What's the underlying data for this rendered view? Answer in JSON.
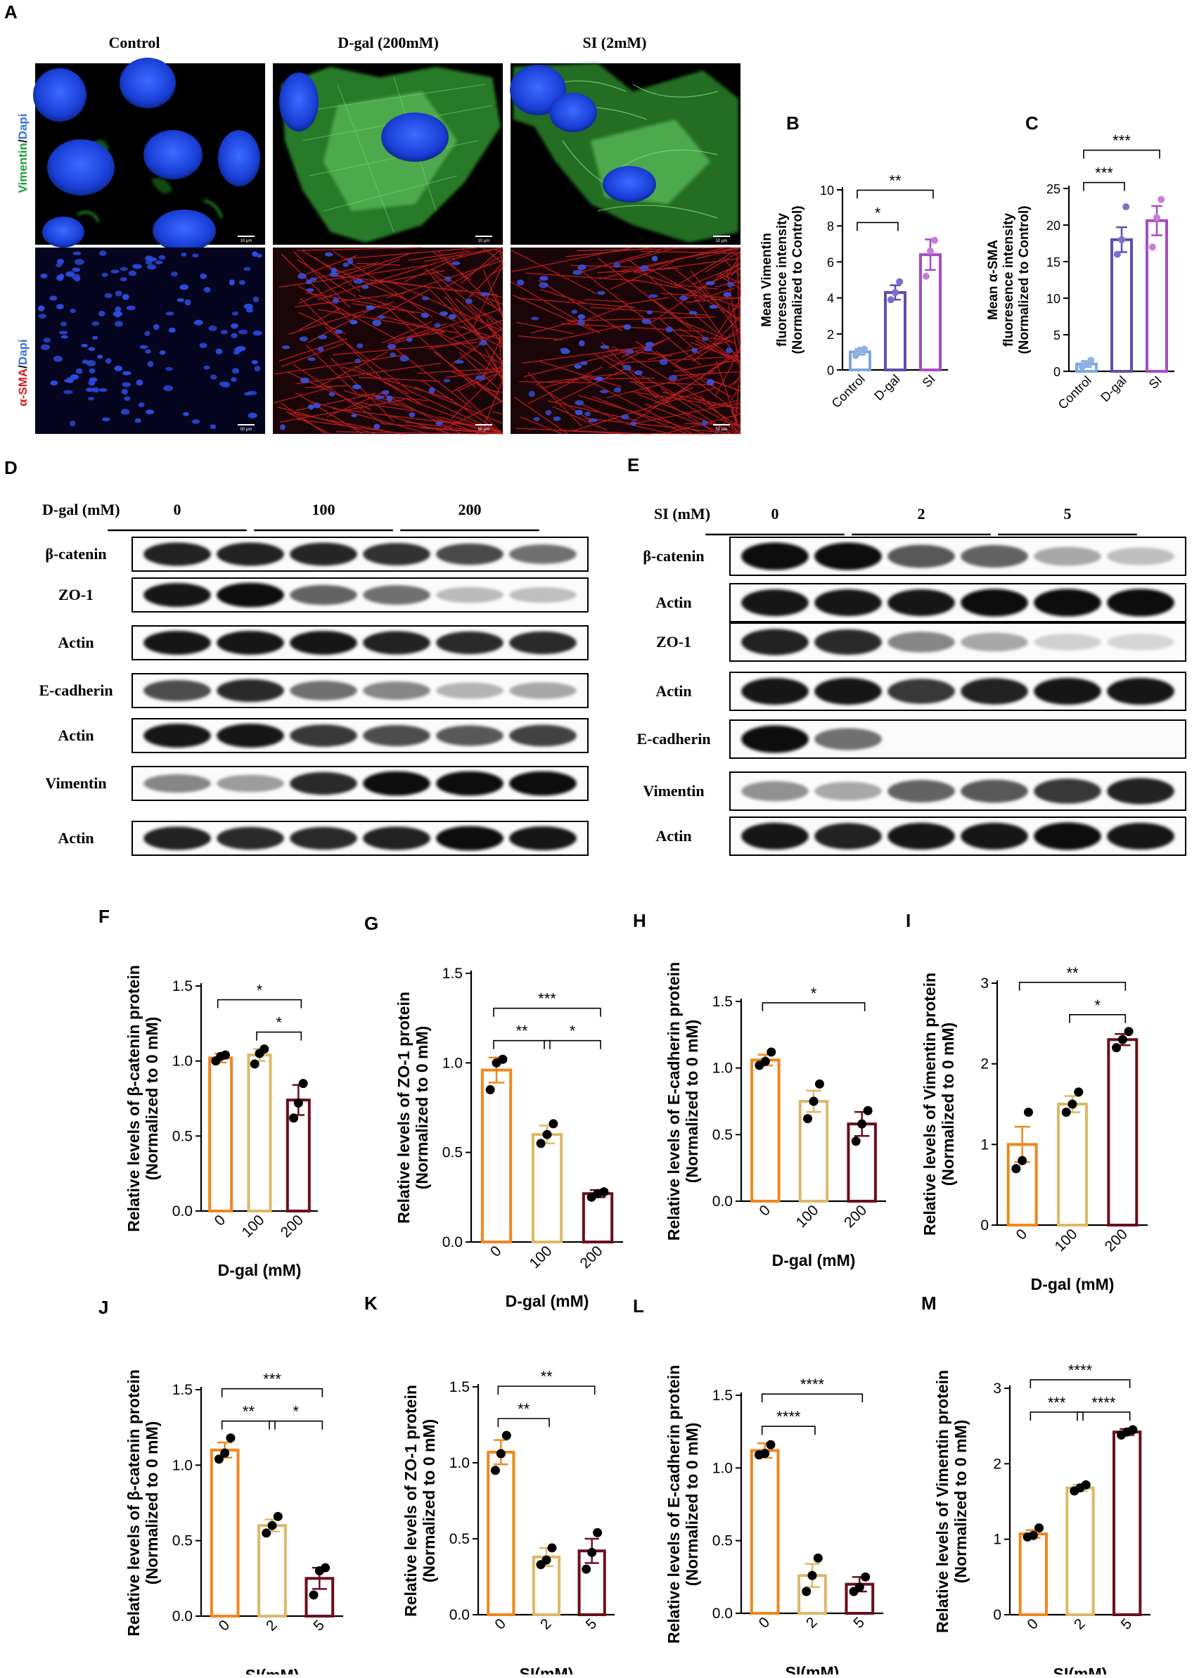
{
  "panel_letters": {
    "A": "A",
    "B": "B",
    "C": "C",
    "D": "D",
    "E": "E",
    "F": "F",
    "G": "G",
    "H": "H",
    "I": "I",
    "J": "J",
    "K": "K",
    "L": "L",
    "M": "M"
  },
  "micrographs": {
    "column_titles": [
      "Control",
      "D-gal (200mM)",
      "SI (2mM)"
    ],
    "row1_label": {
      "stain": "Vimentin",
      "sep": "/",
      "counter": "Dapi"
    },
    "row2_label": {
      "stain": "α-SMA",
      "sep": "/",
      "counter": "Dapi"
    },
    "scale_bars_row1": [
      "10 μm",
      "10 μm",
      "10 μm"
    ],
    "scale_bars_row2": [
      "50 μm",
      "50 μm",
      "50 μm"
    ]
  },
  "blot_D": {
    "treatment_label": "D-gal (mM)",
    "groups": [
      "0",
      "100",
      "200"
    ],
    "rows": [
      {
        "label": "β-catenin",
        "intensity": [
          0.9,
          0.9,
          0.88,
          0.82,
          0.72,
          0.55
        ]
      },
      {
        "label": "ZO-1",
        "intensity": [
          0.95,
          1.0,
          0.6,
          0.55,
          0.22,
          0.2
        ]
      },
      {
        "label": "Actin",
        "intensity": [
          0.95,
          0.95,
          0.95,
          0.9,
          0.85,
          0.85
        ]
      },
      {
        "label": "E-cadherin",
        "intensity": [
          0.7,
          0.85,
          0.55,
          0.45,
          0.25,
          0.3
        ]
      },
      {
        "label": "Actin",
        "intensity": [
          0.95,
          0.95,
          0.8,
          0.7,
          0.65,
          0.75
        ]
      },
      {
        "label": "Vimentin",
        "intensity": [
          0.45,
          0.35,
          0.85,
          1.0,
          1.0,
          1.0
        ]
      },
      {
        "label": "Actin",
        "intensity": [
          0.9,
          0.85,
          0.85,
          0.9,
          1.0,
          0.95
        ]
      }
    ]
  },
  "blot_E": {
    "treatment_label": "SI (mM)",
    "groups": [
      "0",
      "2",
      "5"
    ],
    "rows": [
      {
        "label": "β-catenin",
        "intensity": [
          1.0,
          1.0,
          0.65,
          0.6,
          0.3,
          0.2
        ]
      },
      {
        "label": "Actin",
        "intensity": [
          0.95,
          0.95,
          0.95,
          1.0,
          1.0,
          1.0
        ]
      },
      {
        "label": "ZO-1",
        "intensity": [
          0.9,
          0.85,
          0.45,
          0.3,
          0.12,
          0.1
        ]
      },
      {
        "label": "Actin",
        "intensity": [
          0.95,
          0.95,
          0.8,
          0.9,
          0.95,
          0.95
        ]
      },
      {
        "label": "E-cadherin",
        "intensity": [
          1.0,
          0.55,
          0.0,
          0.0,
          0.0,
          0.0
        ]
      },
      {
        "label": "Vimentin",
        "intensity": [
          0.4,
          0.3,
          0.6,
          0.65,
          0.8,
          0.9
        ]
      },
      {
        "label": "Actin",
        "intensity": [
          0.95,
          0.9,
          0.95,
          0.95,
          1.0,
          0.95
        ]
      }
    ]
  },
  "colors": {
    "orange": "#f0861e",
    "tan": "#ddb866",
    "maroon": "#6b0f1a",
    "light_blue": "#7fa7de",
    "indigo": "#5a4fad",
    "violet": "#a64cc0",
    "dot_blue": "#8fb0e3",
    "dot_indigo": "#7b6fc7",
    "dot_violet": "#c77fd8"
  },
  "chart_data": [
    {
      "id": "B",
      "type": "bar",
      "categories": [
        "Control",
        "D-gal",
        "SI"
      ],
      "values": [
        1.0,
        4.3,
        6.4
      ],
      "errors": [
        0.15,
        0.4,
        0.85
      ],
      "points": [
        [
          0.8,
          1.1,
          1.15
        ],
        [
          3.9,
          4.3,
          4.9
        ],
        [
          5.2,
          6.6,
          7.2
        ]
      ],
      "ylabel_lines": [
        "Mean Vimentin",
        "fluoresence intensity",
        "(Normalized to Control)"
      ],
      "xlabel": "",
      "ylim": [
        0,
        10
      ],
      "yticks": [
        0,
        2,
        4,
        6,
        8,
        10
      ],
      "color_set": "blue",
      "brackets": [
        {
          "from": 0,
          "to": 1,
          "label": "*"
        },
        {
          "from": 0,
          "to": 2,
          "label": "**"
        }
      ]
    },
    {
      "id": "C",
      "type": "bar",
      "categories": [
        "Control",
        "D-gal",
        "SI"
      ],
      "values": [
        1.0,
        18.0,
        20.6
      ],
      "errors": [
        0.4,
        1.7,
        2.0
      ],
      "points": [
        [
          0.6,
          1.0,
          1.5
        ],
        [
          16.0,
          18.0,
          22.5
        ],
        [
          17.0,
          21.0,
          23.5
        ]
      ],
      "ylabel_lines": [
        "Mean α-SMA",
        "fluoresence intensity",
        "(Normalized to Control)"
      ],
      "xlabel": "",
      "ylim": [
        0,
        25
      ],
      "yticks": [
        0,
        5,
        10,
        15,
        20,
        25
      ],
      "color_set": "blue",
      "brackets": [
        {
          "from": 0,
          "to": 1,
          "label": "***"
        },
        {
          "from": 0,
          "to": 2,
          "label": "***"
        }
      ]
    },
    {
      "id": "F",
      "type": "bar",
      "categories": [
        "0",
        "100",
        "200"
      ],
      "values": [
        1.02,
        1.04,
        0.74
      ],
      "errors": [
        0.03,
        0.04,
        0.1
      ],
      "points": [
        [
          1.0,
          1.03,
          1.04
        ],
        [
          0.98,
          1.05,
          1.08
        ],
        [
          0.62,
          0.72,
          0.85
        ]
      ],
      "ylabel_lines": [
        "Relative levels of β-catenin protein",
        "(Normalized to 0 mM)"
      ],
      "xlabel": "D-gal (mM)",
      "ylim": [
        0,
        1.5
      ],
      "yticks": [
        0,
        0.5,
        1.0,
        1.5
      ],
      "color_set": "warm",
      "brackets": [
        {
          "from": 0,
          "to": 2,
          "label": "*"
        },
        {
          "from": 1,
          "to": 2,
          "label": "*"
        }
      ]
    },
    {
      "id": "G",
      "type": "bar",
      "categories": [
        "0",
        "100",
        "200"
      ],
      "values": [
        0.96,
        0.6,
        0.27
      ],
      "errors": [
        0.07,
        0.05,
        0.02
      ],
      "points": [
        [
          0.85,
          1.0,
          1.02
        ],
        [
          0.55,
          0.6,
          0.66
        ],
        [
          0.25,
          0.27,
          0.28
        ]
      ],
      "ylabel_lines": [
        "Relative levels of ZO-1 protein",
        "(Normalized to 0 mM)"
      ],
      "xlabel": "D-gal (mM)",
      "ylim": [
        0,
        1.5
      ],
      "yticks": [
        0,
        0.5,
        1.0,
        1.5
      ],
      "color_set": "warm",
      "brackets": [
        {
          "from": 0,
          "to": 2,
          "label": "***"
        },
        {
          "from": 0,
          "to": 1,
          "label": "**"
        },
        {
          "from": 1,
          "to": 2,
          "label": "*"
        }
      ]
    },
    {
      "id": "H",
      "type": "bar",
      "categories": [
        "0",
        "100",
        "200"
      ],
      "values": [
        1.06,
        0.75,
        0.58
      ],
      "errors": [
        0.04,
        0.08,
        0.09
      ],
      "points": [
        [
          1.02,
          1.05,
          1.12
        ],
        [
          0.62,
          0.75,
          0.88
        ],
        [
          0.45,
          0.58,
          0.68
        ]
      ],
      "ylabel_lines": [
        "Relative levels of E-cadherin  protein",
        "(Normalized to 0 mM)"
      ],
      "xlabel": "D-gal (mM)",
      "ylim": [
        0,
        1.5
      ],
      "yticks": [
        0,
        0.5,
        1.0,
        1.5
      ],
      "color_set": "warm",
      "brackets": [
        {
          "from": 0,
          "to": 2,
          "label": "*"
        }
      ]
    },
    {
      "id": "I",
      "type": "bar",
      "categories": [
        "0",
        "100",
        "200"
      ],
      "values": [
        1.0,
        1.5,
        2.3
      ],
      "errors": [
        0.22,
        0.1,
        0.07
      ],
      "points": [
        [
          0.7,
          0.8,
          1.4
        ],
        [
          1.4,
          1.5,
          1.65
        ],
        [
          2.2,
          2.3,
          2.4
        ]
      ],
      "ylabel_lines": [
        "Relative levels of Vimentin protein",
        "(Normalized to 0 mM)"
      ],
      "xlabel": "D-gal (mM)",
      "ylim": [
        0,
        3
      ],
      "yticks": [
        0,
        1,
        2,
        3
      ],
      "color_set": "warm",
      "brackets": [
        {
          "from": 0,
          "to": 2,
          "label": "**"
        },
        {
          "from": 1,
          "to": 2,
          "label": "*"
        }
      ]
    },
    {
      "id": "J",
      "type": "bar",
      "categories": [
        "0",
        "2",
        "5"
      ],
      "values": [
        1.1,
        0.6,
        0.25
      ],
      "errors": [
        0.05,
        0.04,
        0.07
      ],
      "points": [
        [
          1.04,
          1.08,
          1.18
        ],
        [
          0.55,
          0.6,
          0.66
        ],
        [
          0.14,
          0.3,
          0.32
        ]
      ],
      "ylabel_lines": [
        "Relative levels of β-catenin protein",
        "(Normalized to 0 mM)"
      ],
      "xlabel": "SI(mM)",
      "ylim": [
        0,
        1.5
      ],
      "yticks": [
        0,
        0.5,
        1.0,
        1.5
      ],
      "color_set": "warm",
      "brackets": [
        {
          "from": 0,
          "to": 2,
          "label": "***"
        },
        {
          "from": 0,
          "to": 1,
          "label": "**"
        },
        {
          "from": 1,
          "to": 2,
          "label": "*"
        }
      ]
    },
    {
      "id": "K",
      "type": "bar",
      "categories": [
        "0",
        "2",
        "5"
      ],
      "values": [
        1.07,
        0.38,
        0.42
      ],
      "errors": [
        0.08,
        0.06,
        0.08
      ],
      "points": [
        [
          0.95,
          1.06,
          1.18
        ],
        [
          0.33,
          0.36,
          0.44
        ],
        [
          0.3,
          0.41,
          0.54
        ]
      ],
      "ylabel_lines": [
        "Relative levels of ZO-1 protein",
        "(Normalized to 0 mM)"
      ],
      "xlabel": "SI(mM)",
      "ylim": [
        0,
        1.5
      ],
      "yticks": [
        0,
        0.5,
        1.0,
        1.5
      ],
      "color_set": "warm",
      "brackets": [
        {
          "from": 0,
          "to": 2,
          "label": "**"
        },
        {
          "from": 0,
          "to": 1,
          "label": "**"
        }
      ]
    },
    {
      "id": "L",
      "type": "bar",
      "categories": [
        "0",
        "2",
        "5"
      ],
      "values": [
        1.12,
        0.26,
        0.2
      ],
      "errors": [
        0.05,
        0.08,
        0.05
      ],
      "points": [
        [
          1.09,
          1.1,
          1.16
        ],
        [
          0.15,
          0.26,
          0.38
        ],
        [
          0.15,
          0.18,
          0.25
        ]
      ],
      "ylabel_lines": [
        "Relative levels of E-cadherin  protein",
        "(Normalized to 0 mM)"
      ],
      "xlabel": "SI(mM)",
      "ylim": [
        0,
        1.5
      ],
      "yticks": [
        0,
        0.5,
        1.0,
        1.5
      ],
      "color_set": "warm",
      "brackets": [
        {
          "from": 0,
          "to": 2,
          "label": "****"
        },
        {
          "from": 0,
          "to": 1,
          "label": "****"
        }
      ]
    },
    {
      "id": "M",
      "type": "bar",
      "categories": [
        "0",
        "2",
        "5"
      ],
      "values": [
        1.07,
        1.68,
        2.42
      ],
      "errors": [
        0.05,
        0.04,
        0.04
      ],
      "points": [
        [
          1.03,
          1.05,
          1.15
        ],
        [
          1.64,
          1.68,
          1.72
        ],
        [
          2.38,
          2.42,
          2.45
        ]
      ],
      "ylabel_lines": [
        "Relative levels of Vimentin protein",
        "(Normalized to 0 mM)"
      ],
      "xlabel": "SI(mM)",
      "ylim": [
        0,
        3
      ],
      "yticks": [
        0,
        1,
        2,
        3
      ],
      "color_set": "warm",
      "brackets": [
        {
          "from": 0,
          "to": 2,
          "label": "****"
        },
        {
          "from": 0,
          "to": 1,
          "label": "***"
        },
        {
          "from": 1,
          "to": 2,
          "label": "****"
        }
      ]
    }
  ]
}
